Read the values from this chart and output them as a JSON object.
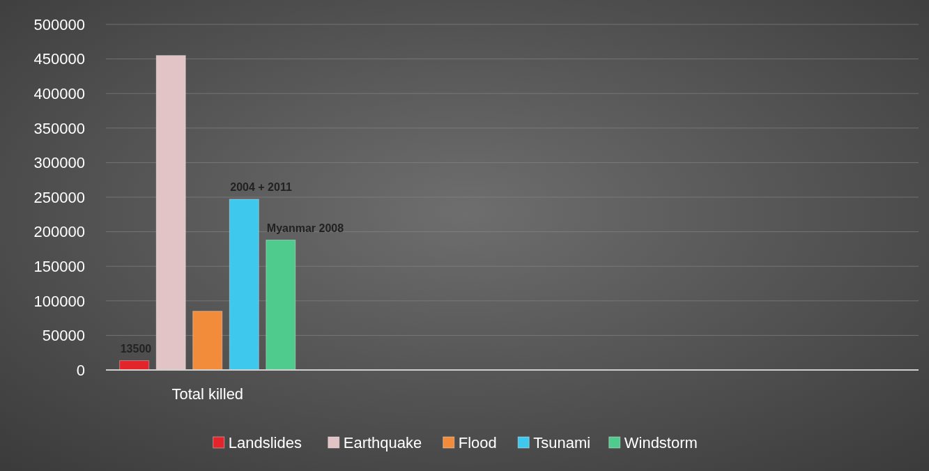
{
  "chart_data": {
    "type": "bar",
    "categories": [
      "Total killed",
      null,
      null,
      null
    ],
    "series": [
      {
        "name": "Landslides",
        "color": "#e3242b",
        "values": [
          13500,
          null,
          null,
          null
        ],
        "value_labels": [
          "13500",
          null,
          null,
          null
        ]
      },
      {
        "name": "Earthquake",
        "color": "#e2c3c6",
        "values": [
          455000,
          null,
          null,
          null
        ]
      },
      {
        "name": "Flood",
        "color": "#f28c3a",
        "values": [
          85000,
          null,
          null,
          null
        ]
      },
      {
        "name": "Tsunami",
        "color": "#3fc8ee",
        "values": [
          247000,
          null,
          null,
          null
        ]
      },
      {
        "name": "Windstorm",
        "color": "#4fcb8e",
        "values": [
          188000,
          null,
          null,
          null
        ]
      }
    ],
    "annotations": [
      "2004 + 2011",
      "Myanmar 2008"
    ],
    "ylim": [
      0,
      500000
    ],
    "yticks": [
      0,
      50000,
      100000,
      150000,
      200000,
      250000,
      300000,
      350000,
      400000,
      450000,
      500000
    ],
    "grid": "y",
    "legend": "bottom"
  }
}
